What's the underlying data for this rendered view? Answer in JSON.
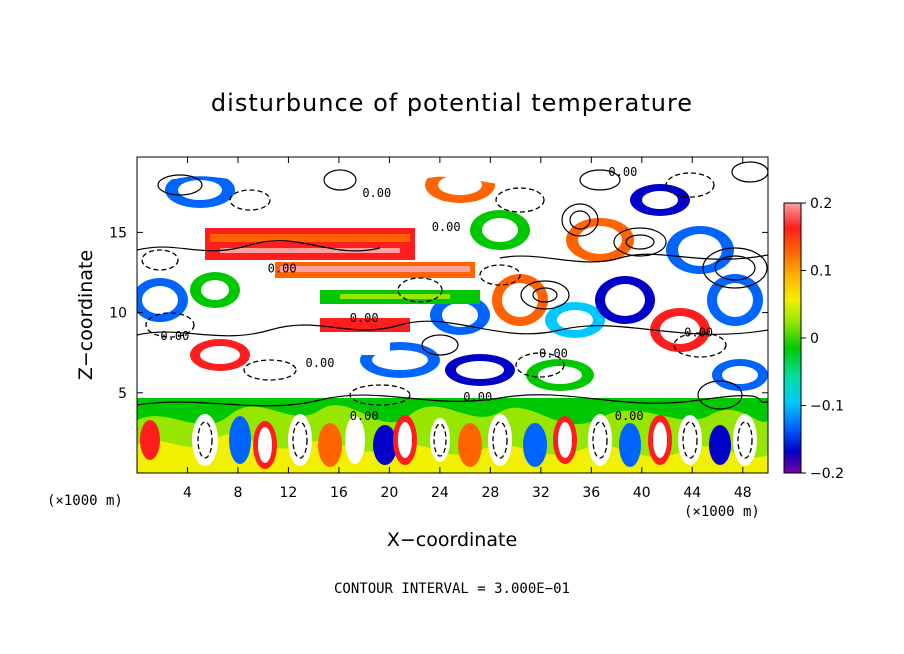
{
  "chart_data": {
    "type": "heatmap",
    "title": "disturbunce of potential temperature",
    "xlabel": "X−coordinate",
    "ylabel": "Z−coordinate",
    "x_unit": "(×1000 m)",
    "z_unit": "(×1000 m)",
    "xlim": [
      0,
      50
    ],
    "ylim": [
      0,
      19.7
    ],
    "x_ticks": [
      4,
      8,
      12,
      16,
      20,
      24,
      28,
      32,
      36,
      40,
      44,
      48
    ],
    "y_ticks": [
      5,
      10,
      15
    ],
    "colorbar": {
      "min": -0.2,
      "max": 0.2,
      "tick_labels": [
        "0.2",
        "0.1",
        "0",
        "−0.1",
        "−0.2"
      ],
      "tick_values": [
        0.2,
        0.1,
        0,
        -0.1,
        -0.2
      ],
      "colors": [
        "#7a00a0",
        "#0000c8",
        "#0064ff",
        "#00c8ff",
        "#00e0a0",
        "#00c800",
        "#96e600",
        "#f0f000",
        "#ffb400",
        "#ff6400",
        "#ff1e1e",
        "#ffa0a0"
      ]
    },
    "contour_labels": [
      {
        "text": "0.00",
        "x": 19,
        "z": 17.2
      },
      {
        "text": "0.00",
        "x": 24.5,
        "z": 15.1
      },
      {
        "text": "0.00",
        "x": 38.5,
        "z": 18.5
      },
      {
        "text": "0.00",
        "x": 11.5,
        "z": 12.5
      },
      {
        "text": "0.00",
        "x": 18,
        "z": 9.4
      },
      {
        "text": "0.00",
        "x": 3,
        "z": 8.3
      },
      {
        "text": "0.00",
        "x": 14.5,
        "z": 6.6
      },
      {
        "text": "0.00",
        "x": 33,
        "z": 7.2
      },
      {
        "text": "0.00",
        "x": 27,
        "z": 4.5
      },
      {
        "text": "0.00",
        "x": 39,
        "z": 3.3
      },
      {
        "text": "0.00",
        "x": 44.5,
        "z": 8.5
      },
      {
        "text": "0.00",
        "x": 18,
        "z": 3.3
      }
    ],
    "contour_interval": "CONTOUR INTERVAL = 3.000E−01"
  }
}
